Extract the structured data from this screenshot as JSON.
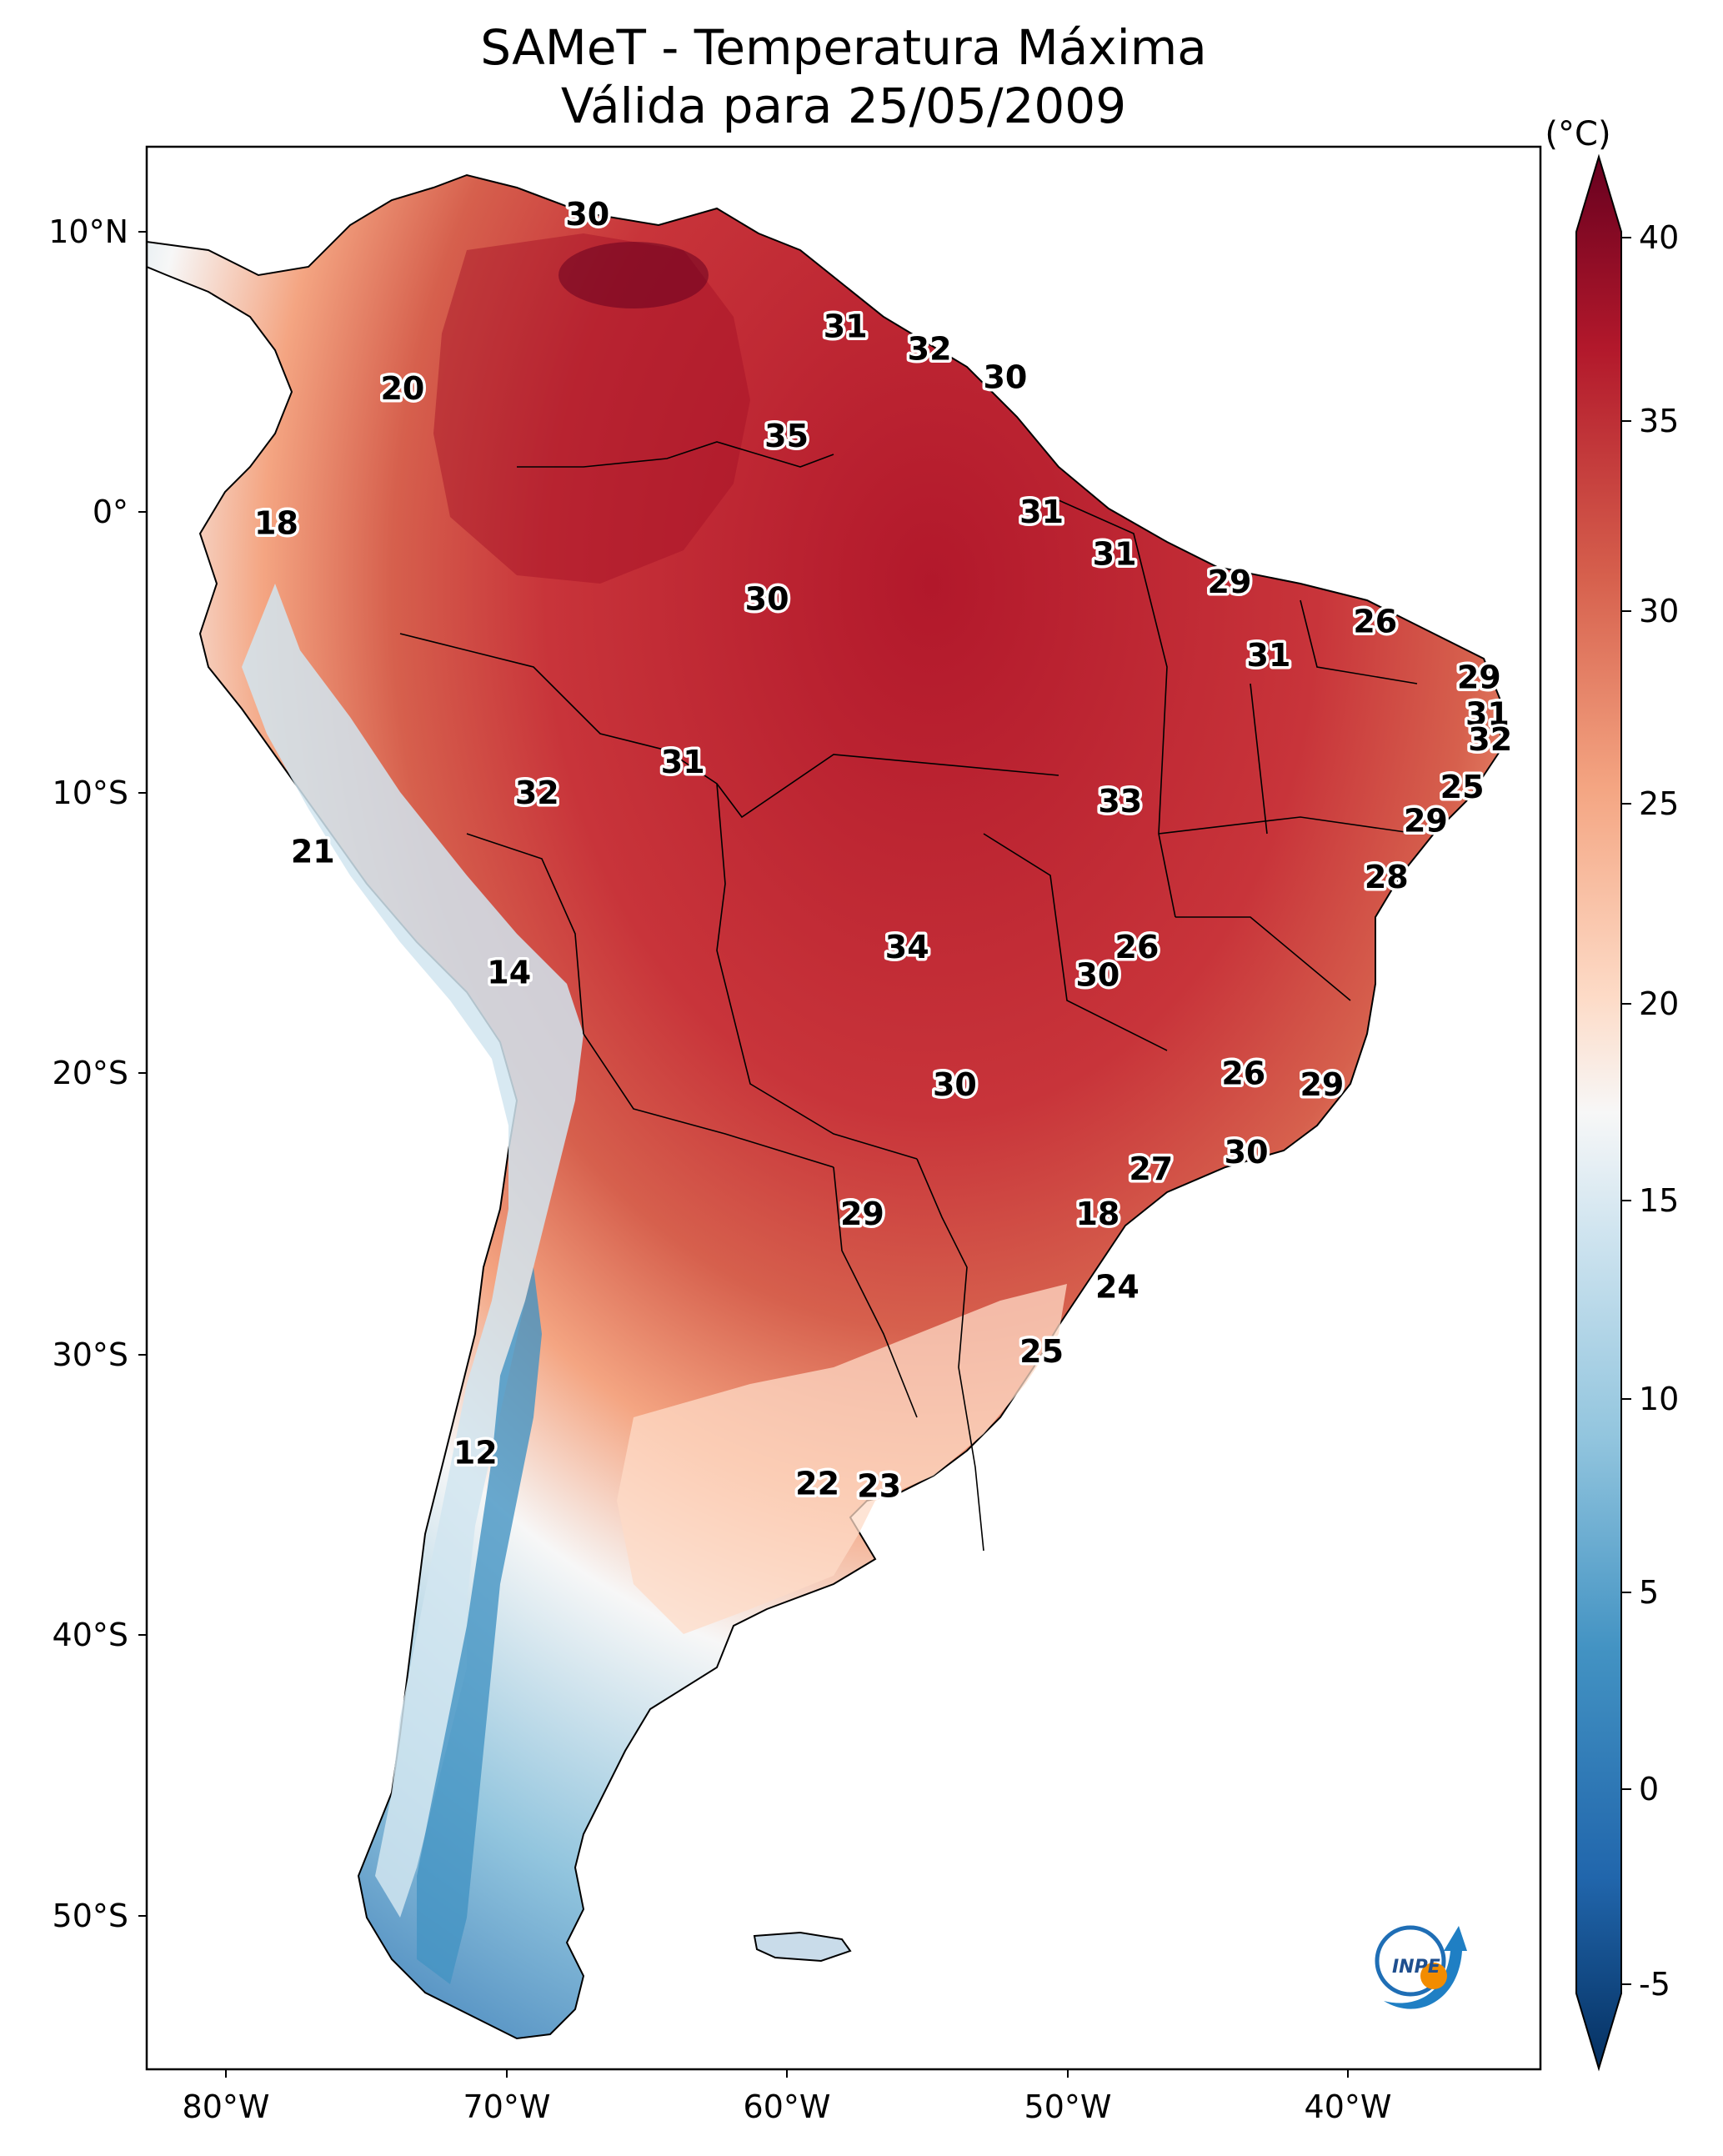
{
  "title": {
    "line1": "SAMeT - Temperatura Máxima",
    "line2": "Válida para 25/05/2009"
  },
  "map": {
    "region": "South America",
    "lon_ticks": [
      "80°W",
      "70°W",
      "60°W",
      "50°W",
      "40°W"
    ],
    "lat_ticks": [
      "10°N",
      "0°",
      "10°S",
      "20°S",
      "30°S",
      "40°S",
      "50°S"
    ]
  },
  "colorbar": {
    "unit": "(°C)",
    "ticks": [
      "40",
      "35",
      "30",
      "25",
      "20",
      "15",
      "10",
      "5",
      "0",
      "-5"
    ],
    "colors": {
      "hot": "#67001f",
      "warm": "#d6604d",
      "neutral": "#f7f7f7",
      "cool": "#92c5de",
      "cold": "#053061"
    }
  },
  "temperature_labels": [
    {
      "value": "30",
      "lon": -67.1,
      "lat": 10.6
    },
    {
      "value": "31",
      "lon": -57.9,
      "lat": 6.6
    },
    {
      "value": "32",
      "lon": -54.9,
      "lat": 5.8
    },
    {
      "value": "30",
      "lon": -52.2,
      "lat": 4.8
    },
    {
      "value": "20",
      "lon": -73.7,
      "lat": 4.4
    },
    {
      "value": "35",
      "lon": -60.0,
      "lat": 2.7
    },
    {
      "value": "18",
      "lon": -78.2,
      "lat": -0.4
    },
    {
      "value": "31",
      "lon": -50.9,
      "lat": 0.0
    },
    {
      "value": "31",
      "lon": -48.3,
      "lat": -1.5
    },
    {
      "value": "29",
      "lon": -44.2,
      "lat": -2.5
    },
    {
      "value": "30",
      "lon": -60.7,
      "lat": -3.1
    },
    {
      "value": "26",
      "lon": -39.0,
      "lat": -3.9
    },
    {
      "value": "31",
      "lon": -42.8,
      "lat": -5.1
    },
    {
      "value": "29",
      "lon": -35.3,
      "lat": -5.9
    },
    {
      "value": "31",
      "lon": -35.0,
      "lat": -7.2
    },
    {
      "value": "32",
      "lon": -34.9,
      "lat": -8.1
    },
    {
      "value": "31",
      "lon": -63.7,
      "lat": -8.9
    },
    {
      "value": "25",
      "lon": -35.9,
      "lat": -9.8
    },
    {
      "value": "32",
      "lon": -68.9,
      "lat": -10.0
    },
    {
      "value": "33",
      "lon": -48.1,
      "lat": -10.3
    },
    {
      "value": "29",
      "lon": -37.2,
      "lat": -11.0
    },
    {
      "value": "21",
      "lon": -76.9,
      "lat": -12.1
    },
    {
      "value": "28",
      "lon": -38.6,
      "lat": -13.0
    },
    {
      "value": "34",
      "lon": -55.7,
      "lat": -15.5
    },
    {
      "value": "26",
      "lon": -47.5,
      "lat": -15.5
    },
    {
      "value": "14",
      "lon": -69.9,
      "lat": -16.4
    },
    {
      "value": "30",
      "lon": -48.9,
      "lat": -16.5
    },
    {
      "value": "26",
      "lon": -43.7,
      "lat": -20.0
    },
    {
      "value": "30",
      "lon": -54.0,
      "lat": -20.4
    },
    {
      "value": "29",
      "lon": -40.9,
      "lat": -20.4
    },
    {
      "value": "30",
      "lon": -43.6,
      "lat": -22.8
    },
    {
      "value": "27",
      "lon": -47.0,
      "lat": -23.4
    },
    {
      "value": "29",
      "lon": -57.3,
      "lat": -25.0
    },
    {
      "value": "18",
      "lon": -48.9,
      "lat": -25.0
    },
    {
      "value": "24",
      "lon": -48.2,
      "lat": -27.6
    },
    {
      "value": "25",
      "lon": -50.9,
      "lat": -29.9
    },
    {
      "value": "12",
      "lon": -71.1,
      "lat": -33.5
    },
    {
      "value": "22",
      "lon": -58.9,
      "lat": -34.6
    },
    {
      "value": "23",
      "lon": -56.7,
      "lat": -34.7
    }
  ]
}
